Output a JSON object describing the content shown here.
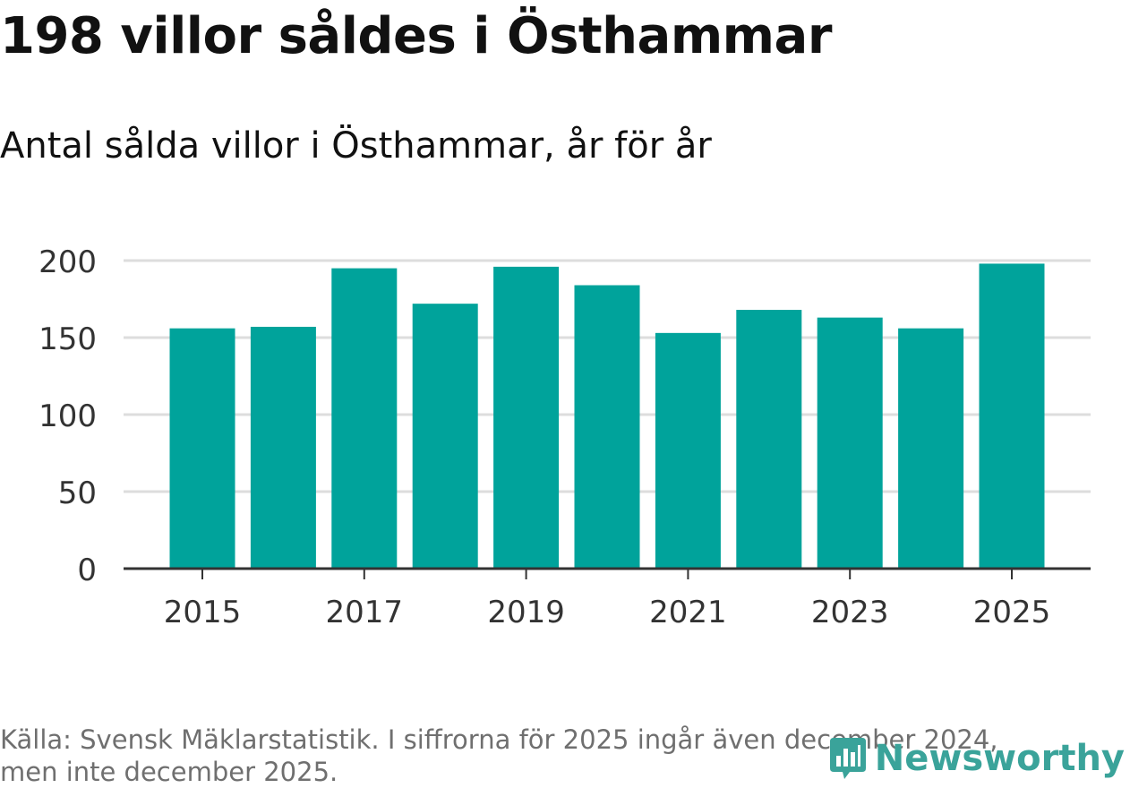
{
  "title": "198 villor såldes i Östhammar",
  "subtitle": "Antal sålda villor i Östhammar, år för år",
  "footer": {
    "line1": "Källa: Svensk Mäklarstatistik. I siffrorna för 2025 ingår även december 2024,",
    "line2": "men inte december 2025."
  },
  "logo": {
    "name": "Newsworthy",
    "icon": "newsworthy-logo-icon"
  },
  "colors": {
    "bar": "#00a39b",
    "grid": "#dddddd",
    "axis": "#333333",
    "tick_text": "#333333",
    "logo": "#3aa39a"
  },
  "chart_data": {
    "type": "bar",
    "title": "198 villor såldes i Östhammar",
    "subtitle": "Antal sålda villor i Östhammar, år för år",
    "xlabel": "",
    "ylabel": "",
    "categories": [
      "2015",
      "2016",
      "2017",
      "2018",
      "2019",
      "2020",
      "2021",
      "2022",
      "2023",
      "2024",
      "2025"
    ],
    "values": [
      156,
      157,
      195,
      172,
      196,
      184,
      153,
      168,
      163,
      156,
      198
    ],
    "x_tick_labels": [
      "2015",
      "2017",
      "2019",
      "2021",
      "2023",
      "2025"
    ],
    "y_ticks": [
      0,
      50,
      100,
      150,
      200
    ],
    "ylim": [
      0,
      200
    ],
    "grid": true,
    "legend": "none"
  }
}
